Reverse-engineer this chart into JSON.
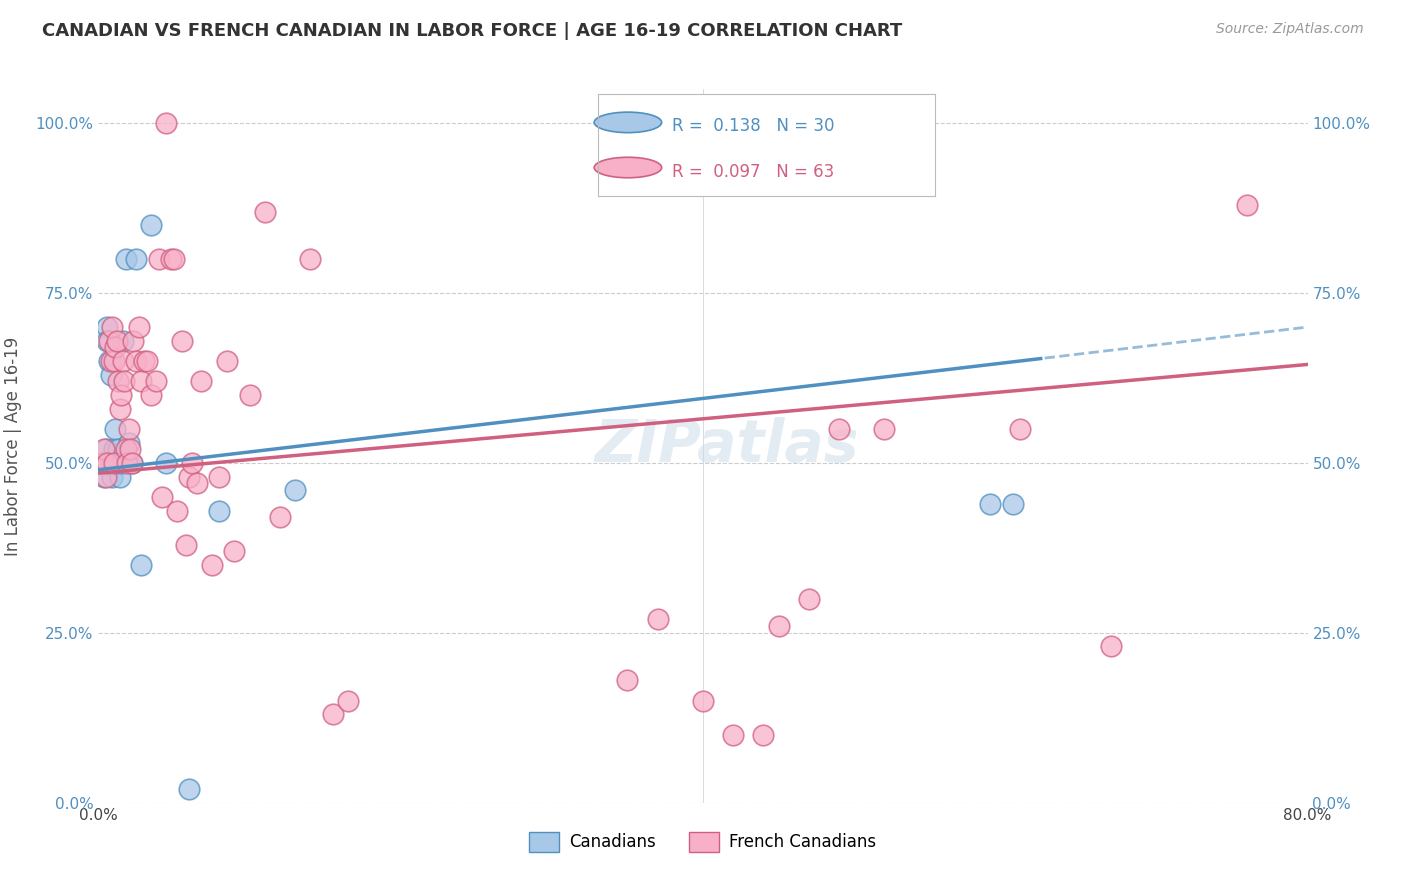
{
  "title": "CANADIAN VS FRENCH CANADIAN IN LABOR FORCE | AGE 16-19 CORRELATION CHART",
  "source": "Source: ZipAtlas.com",
  "ylabel": "In Labor Force | Age 16-19",
  "xlim": [
    0.0,
    0.8
  ],
  "ylim": [
    0.0,
    1.05
  ],
  "yticks": [
    0.0,
    0.25,
    0.5,
    0.75,
    1.0
  ],
  "ytick_labels": [
    "0.0%",
    "25.0%",
    "50.0%",
    "75.0%",
    "100.0%"
  ],
  "xtick_labels_left": "0.0%",
  "xtick_labels_right": "80.0%",
  "canadians_color": "#a8c8e8",
  "canadians_edge_color": "#5090c0",
  "french_color": "#f8b0c8",
  "french_edge_color": "#d06080",
  "trend_canadian_color": "#5090c0",
  "trend_french_color": "#d06080",
  "background_color": "#ffffff",
  "grid_color": "#cccccc",
  "canadians_x": [
    0.002,
    0.004,
    0.005,
    0.006,
    0.006,
    0.007,
    0.008,
    0.008,
    0.009,
    0.009,
    0.01,
    0.01,
    0.011,
    0.012,
    0.013,
    0.014,
    0.015,
    0.016,
    0.018,
    0.02,
    0.022,
    0.025,
    0.028,
    0.035,
    0.045,
    0.06,
    0.08,
    0.13,
    0.59,
    0.605
  ],
  "canadians_y": [
    0.5,
    0.48,
    0.52,
    0.7,
    0.68,
    0.65,
    0.63,
    0.5,
    0.5,
    0.48,
    0.52,
    0.5,
    0.55,
    0.5,
    0.52,
    0.48,
    0.5,
    0.68,
    0.8,
    0.53,
    0.5,
    0.8,
    0.35,
    0.85,
    0.5,
    0.02,
    0.43,
    0.46,
    0.44,
    0.44
  ],
  "french_x": [
    0.003,
    0.004,
    0.005,
    0.006,
    0.007,
    0.008,
    0.009,
    0.01,
    0.01,
    0.011,
    0.012,
    0.013,
    0.014,
    0.015,
    0.016,
    0.017,
    0.018,
    0.019,
    0.02,
    0.021,
    0.022,
    0.023,
    0.025,
    0.027,
    0.028,
    0.03,
    0.032,
    0.035,
    0.038,
    0.04,
    0.042,
    0.045,
    0.048,
    0.05,
    0.052,
    0.055,
    0.058,
    0.06,
    0.062,
    0.065,
    0.068,
    0.075,
    0.08,
    0.085,
    0.09,
    0.1,
    0.11,
    0.12,
    0.14,
    0.155,
    0.165,
    0.35,
    0.37,
    0.4,
    0.42,
    0.44,
    0.45,
    0.47,
    0.49,
    0.52,
    0.61,
    0.67,
    0.76
  ],
  "french_y": [
    0.5,
    0.52,
    0.48,
    0.5,
    0.68,
    0.65,
    0.7,
    0.5,
    0.65,
    0.67,
    0.68,
    0.62,
    0.58,
    0.6,
    0.65,
    0.62,
    0.52,
    0.5,
    0.55,
    0.52,
    0.5,
    0.68,
    0.65,
    0.7,
    0.62,
    0.65,
    0.65,
    0.6,
    0.62,
    0.8,
    0.45,
    1.0,
    0.8,
    0.8,
    0.43,
    0.68,
    0.38,
    0.48,
    0.5,
    0.47,
    0.62,
    0.35,
    0.48,
    0.65,
    0.37,
    0.6,
    0.87,
    0.42,
    0.8,
    0.13,
    0.15,
    0.18,
    0.27,
    0.15,
    0.1,
    0.1,
    0.26,
    0.3,
    0.55,
    0.55,
    0.55,
    0.23,
    0.88
  ],
  "watermark": "ZIPatlas",
  "legend_R1": "R =  0.138   N = 30",
  "legend_R2": "R =  0.097   N = 63",
  "legend_label1": "Canadians",
  "legend_label2": "French Canadians"
}
